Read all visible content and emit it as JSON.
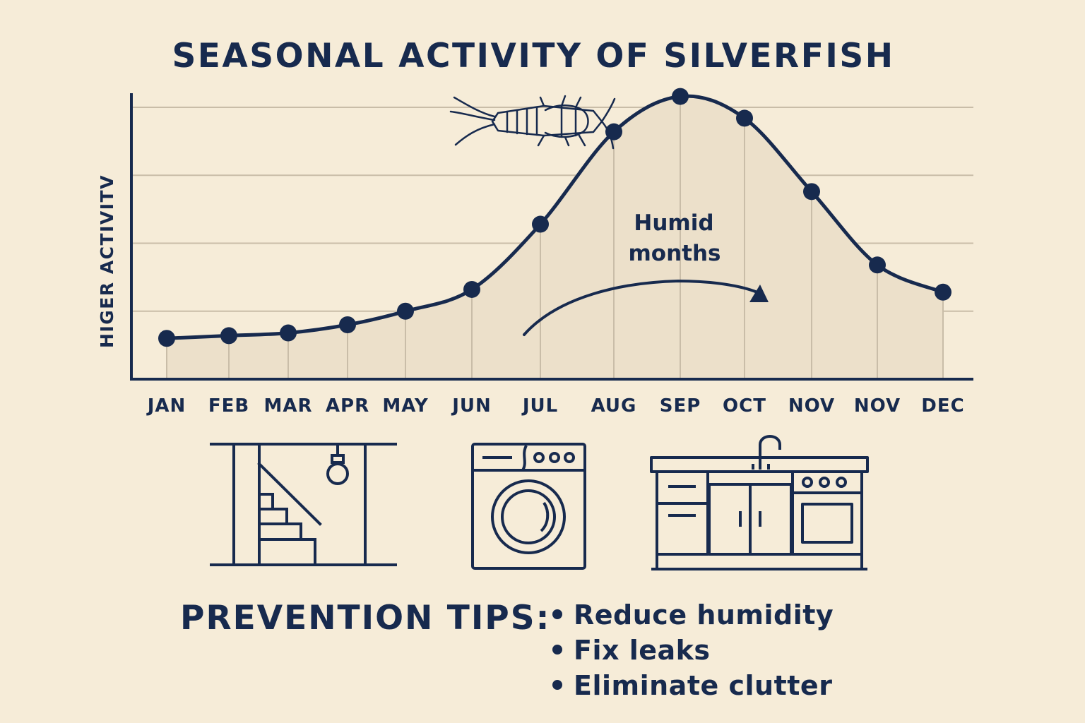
{
  "chart_data": {
    "type": "area",
    "title": "SEASONAL ACTIVITY OF SILVERFISH",
    "ylabel": "HIGER ACTIVITV",
    "xlabel": "",
    "categories": [
      "JAN",
      "FEB",
      "MAR",
      "APR",
      "MAY",
      "JUN",
      "JUL",
      "AUG",
      "SEP",
      "OCT",
      "NOV",
      "NOV",
      "DEC"
    ],
    "values": [
      15,
      16,
      17,
      20,
      25,
      33,
      57,
      91,
      104,
      96,
      69,
      42,
      32
    ],
    "ylim": [
      0,
      120
    ],
    "grid": "horizontal",
    "legend": "none",
    "annotation": "Humid months",
    "colors": {
      "ink": "#172a4e",
      "fill": "#ece0ca",
      "grid": "#c9bda8",
      "background": "#f6ecd8"
    }
  },
  "icons": [
    "silverfish-icon",
    "basement-stairs-icon",
    "washing-machine-icon",
    "kitchen-sink-icon"
  ],
  "tips": {
    "heading": "PREVENTION TIPS:",
    "items": [
      "Reduce humidity",
      "Fix leaks",
      "Eliminate clutter"
    ]
  }
}
